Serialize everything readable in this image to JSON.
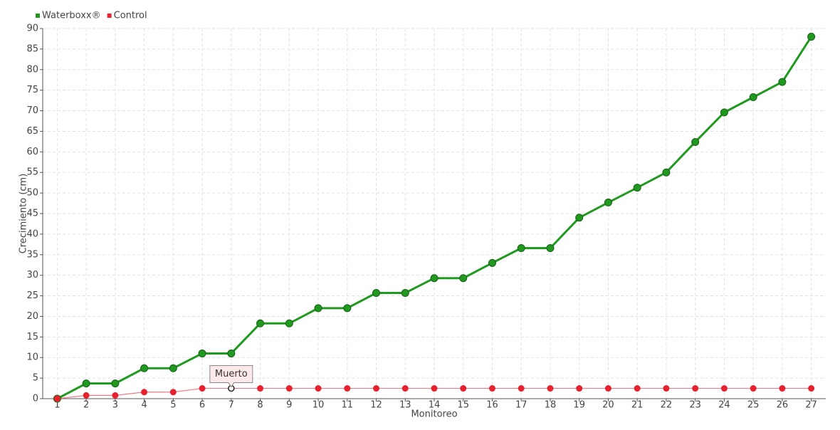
{
  "chart_data": {
    "type": "line",
    "x": [
      1,
      2,
      3,
      4,
      5,
      6,
      7,
      8,
      9,
      10,
      11,
      12,
      13,
      14,
      15,
      16,
      17,
      18,
      19,
      20,
      21,
      22,
      23,
      24,
      25,
      26,
      27
    ],
    "series": [
      {
        "name": "Waterboxx®",
        "color": "#1f9a1f",
        "values": [
          0,
          3.7,
          3.7,
          7.4,
          7.4,
          11,
          11,
          18.3,
          18.3,
          22,
          22,
          25.7,
          25.7,
          29.3,
          29.3,
          33,
          36.6,
          36.6,
          44,
          47.7,
          51.3,
          55,
          62.4,
          69.6,
          73.3,
          77,
          88
        ]
      },
      {
        "name": "Control",
        "color": "#e8212f",
        "values": [
          0,
          0.8,
          0.8,
          1.6,
          1.6,
          2.5,
          2.5,
          2.5,
          2.5,
          2.5,
          2.5,
          2.5,
          2.5,
          2.5,
          2.5,
          2.5,
          2.5,
          2.5,
          2.5,
          2.5,
          2.5,
          2.5,
          2.5,
          2.5,
          2.5,
          2.5,
          2.5
        ]
      }
    ],
    "xlabel": "Monitoreo",
    "ylabel": "Crecimiento (cm)",
    "xlim": [
      0.5,
      27.5
    ],
    "xticks": [
      1,
      2,
      3,
      4,
      5,
      6,
      7,
      8,
      9,
      10,
      11,
      12,
      13,
      14,
      15,
      16,
      17,
      18,
      19,
      20,
      21,
      22,
      23,
      24,
      25,
      26,
      27
    ],
    "ylim": [
      0,
      90
    ],
    "yticks": [
      0,
      5,
      10,
      15,
      20,
      25,
      30,
      35,
      40,
      45,
      50,
      55,
      60,
      65,
      70,
      75,
      80,
      85,
      90
    ],
    "grid": true,
    "legend": "top-left",
    "annotations": [
      {
        "text": "Muerto",
        "x": 7,
        "y": 2.5
      }
    ]
  }
}
